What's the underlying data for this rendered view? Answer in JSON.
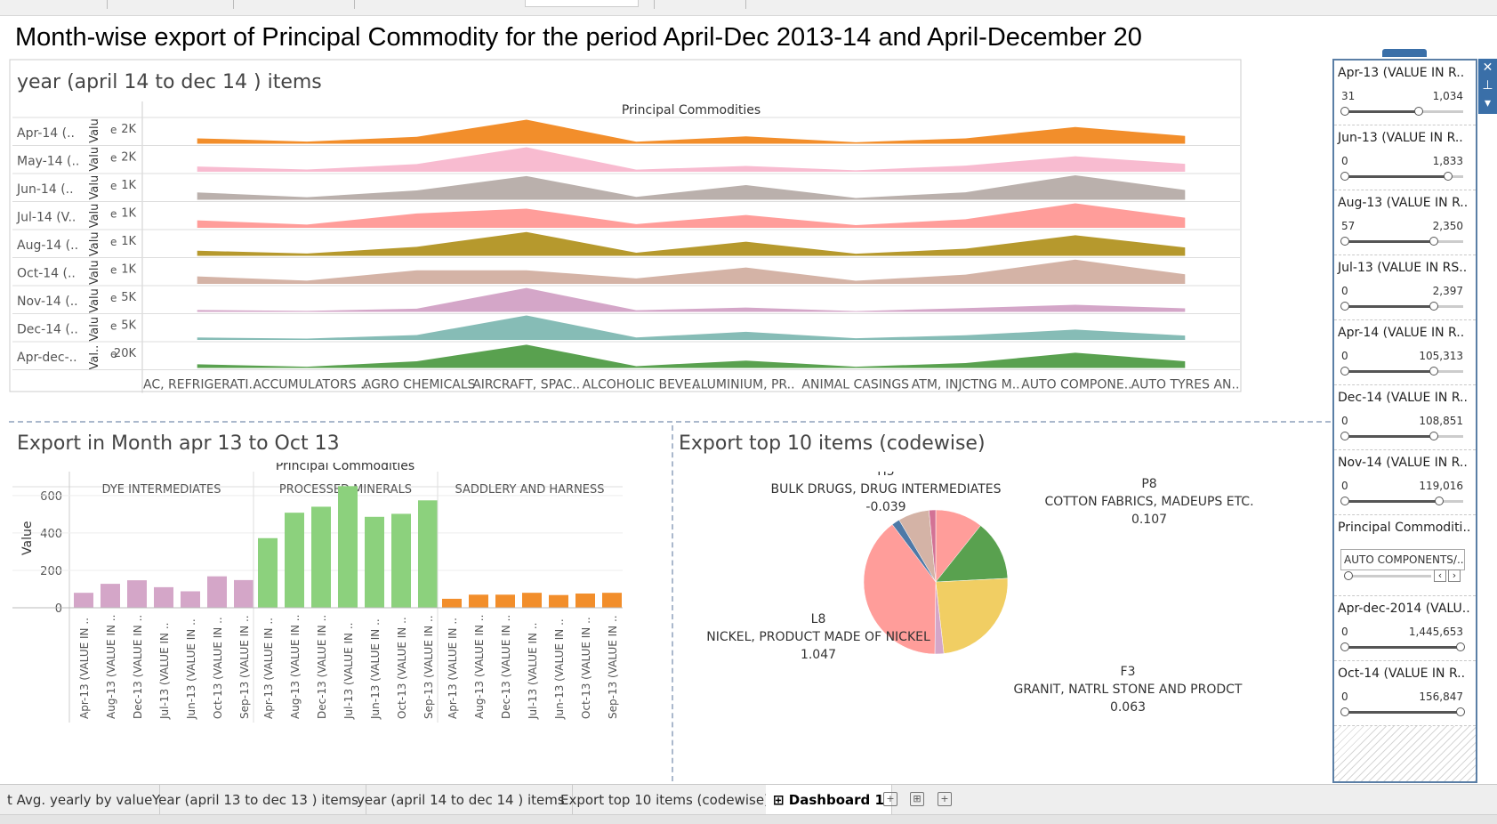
{
  "dashboard_title": "Month-wise export of Principal Commodity for the period April-Dec 2013-14 and April-December 20",
  "charts": {
    "top": {
      "title": "year (april 14 to dec 14 ) items",
      "header": "Principal Commodities",
      "axis_label": "Val.. Valu Valu Valu Valu Valu Valu Valu Valu",
      "axis_letter": "e"
    },
    "bar": {
      "title": "Export in Month apr 13 to Oct 13",
      "header": "Principal Commodities",
      "ylabel": "Value"
    },
    "pie": {
      "title": "Export top 10 items (codewise)"
    }
  },
  "chart_data": [
    {
      "type": "area",
      "categories": [
        "AC, REFRIGERATI..",
        "ACCUMULATORS ..",
        "AGRO CHEMICALS",
        "AIRCRAFT, SPAC..",
        "ALCOHOLIC BEVE..",
        "ALUMINIUM, PR..",
        "ANIMAL CASINGS",
        "ATM, INJCTNG M..",
        "AUTO COMPONE..",
        "AUTO TYRES AN.."
      ],
      "series": [
        {
          "name": "Apr-14 (..",
          "tick": "2K",
          "color": "#f28e2b",
          "max": 2500,
          "values": [
            550,
            220,
            700,
            2450,
            200,
            750,
            150,
            550,
            1700,
            800
          ]
        },
        {
          "name": "May-14 (..",
          "tick": "2K",
          "color": "#f8bbd0",
          "max": 2700,
          "values": [
            580,
            240,
            850,
            2700,
            230,
            640,
            160,
            680,
            1700,
            870
          ]
        },
        {
          "name": "Jun-14 (..",
          "tick": "1K",
          "color": "#bab0ac",
          "max": 1500,
          "values": [
            450,
            160,
            570,
            1450,
            180,
            900,
            110,
            460,
            1500,
            600
          ]
        },
        {
          "name": "Jul-14 (V..",
          "tick": "1K",
          "color": "#ff9d9a",
          "max": 2300,
          "values": [
            700,
            300,
            1350,
            1800,
            350,
            1200,
            250,
            800,
            2300,
            950
          ]
        },
        {
          "name": "Aug-14 (..",
          "tick": "1K",
          "color": "#b6992d",
          "max": 1900,
          "values": [
            400,
            180,
            700,
            1850,
            240,
            1100,
            160,
            550,
            1600,
            650
          ]
        },
        {
          "name": "Oct-14 (..",
          "tick": "1K",
          "color": "#d4b3a6",
          "max": 1800,
          "values": [
            550,
            240,
            1000,
            1000,
            400,
            1200,
            230,
            680,
            1780,
            700
          ]
        },
        {
          "name": "Nov-14 (..",
          "tick": "5K",
          "color": "#d4a6c8",
          "max": 9000,
          "values": [
            700,
            350,
            1200,
            8800,
            600,
            1600,
            300,
            1400,
            2600,
            1300
          ]
        },
        {
          "name": "Dec-14 (..",
          "tick": "5K",
          "color": "#86bcb6",
          "max": 9000,
          "values": [
            900,
            500,
            1800,
            9000,
            900,
            3000,
            600,
            1700,
            3800,
            1600
          ]
        },
        {
          "name": "Apr-dec-..",
          "tick": "20K",
          "color": "#59a14f",
          "max": 40000,
          "values": [
            6000,
            2000,
            11000,
            38000,
            3000,
            12000,
            2000,
            8000,
            25000,
            11000
          ]
        }
      ]
    },
    {
      "type": "bar",
      "groups": [
        "DYE INTERMEDIATES",
        "PROCESSED MINERALS",
        "SADDLERY AND HARNESS"
      ],
      "categories": [
        "Apr-13 (VALUE IN ..",
        "Aug-13 (VALUE IN ..",
        "Dec-13 (VALUE IN ..",
        "Jul-13 (VALUE IN ..",
        "Jun-13 (VALUE IN ..",
        "Oct-13 (VALUE IN ..",
        "Sep-13 (VALUE IN .."
      ],
      "series": [
        {
          "name": "DYE INTERMEDIATES",
          "color": "#d4a6c8",
          "values": [
            80,
            128,
            147,
            110,
            88,
            168,
            148
          ]
        },
        {
          "name": "PROCESSED MINERALS",
          "color": "#8cd17d",
          "values": [
            372,
            508,
            540,
            650,
            486,
            502,
            574
          ]
        },
        {
          "name": "SADDLERY AND HARNESS",
          "color": "#f28e2b",
          "values": [
            48,
            70,
            70,
            80,
            68,
            76,
            80
          ]
        }
      ],
      "yticks": [
        "0",
        "200",
        "400",
        "600"
      ],
      "ylim": [
        0,
        680
      ],
      "ylabel": "Value"
    },
    {
      "type": "pie",
      "labels": [
        {
          "code": "H5",
          "name": "BULK DRUGS, DRUG INTERMEDIATES",
          "value": "-0.039"
        },
        {
          "code": "P8",
          "name": "COTTON FABRICS, MADEUPS ETC.",
          "value": "0.107"
        },
        {
          "code": "L8",
          "name": "NICKEL, PRODUCT MADE OF NICKEL",
          "value": "1.047"
        },
        {
          "code": "F3",
          "name": "GRANIT, NATRL STONE AND PRODCT",
          "value": "0.063"
        }
      ],
      "slices": [
        {
          "value": 0.107,
          "color": "#ff9d9a"
        },
        {
          "value": 0.135,
          "color": "#59a14f"
        },
        {
          "value": 0.24,
          "color": "#f1ce63"
        },
        {
          "value": 0.02,
          "color": "#d4a6c8"
        },
        {
          "value": 0.395,
          "color": "#ff9d9a"
        },
        {
          "value": 0.018,
          "color": "#4e79a7"
        },
        {
          "value": 0.07,
          "color": "#d4b3a6"
        },
        {
          "value": 0.015,
          "color": "#d37295"
        }
      ]
    }
  ],
  "filters": [
    {
      "title": "Apr-13 (VALUE IN R..",
      "min": "31",
      "max": "1,034",
      "fill": 0.63
    },
    {
      "title": "Jun-13 (VALUE IN R..",
      "min": "0",
      "max": "1,833",
      "fill": 0.87
    },
    {
      "title": "Aug-13 (VALUE IN R..",
      "min": "57",
      "max": "2,350",
      "fill": 0.75
    },
    {
      "title": "Jul-13 (VALUE IN RS..",
      "min": "0",
      "max": "2,397",
      "fill": 0.75
    },
    {
      "title": "Apr-14 (VALUE IN R..",
      "min": "0",
      "max": "105,313",
      "fill": 0.75
    },
    {
      "title": "Dec-14 (VALUE IN R..",
      "min": "0",
      "max": "108,851",
      "fill": 0.75
    },
    {
      "title": "Nov-14 (VALUE IN R..",
      "min": "0",
      "max": "119,016",
      "fill": 0.8
    }
  ],
  "principal_filter": {
    "title": "Principal Commoditi..",
    "value": "AUTO COMPONENTS/..."
  },
  "filters_bottom": [
    {
      "title": "Apr-dec-2014 (VALU..",
      "min": "0",
      "max": "1,445,653",
      "fill": 0.98
    },
    {
      "title": "Oct-14 (VALUE IN R..",
      "min": "0",
      "max": "156,847",
      "fill": 0.98
    }
  ],
  "tabs": [
    {
      "label": "t Avg. yearly by  value"
    },
    {
      "label": "Year (april 13 to dec 13 ) items"
    },
    {
      "label": "year (april 14 to dec 14 ) items"
    },
    {
      "label": "Export top 10 items (codewise)"
    },
    {
      "label": "⊞ Dashboard 1"
    }
  ]
}
